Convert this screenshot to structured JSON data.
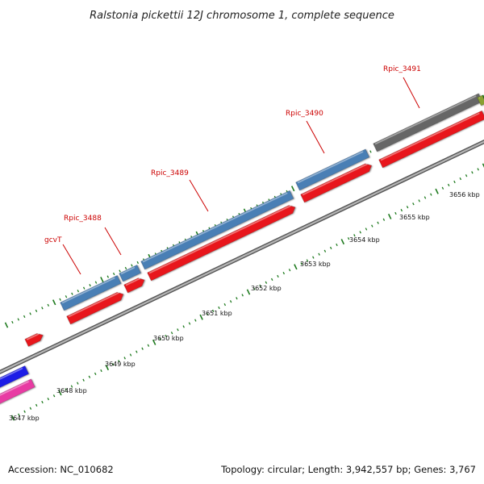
{
  "title": "Ralstonia pickettii 12J chromosome 1, complete sequence",
  "accession": "Accession: NC_010682",
  "summary": "Topology: circular; Length: 3,942,557 bp; Genes: 3,767",
  "colors": {
    "backbone": "#7d7d7d",
    "forward_gene": "#4a7fb5",
    "reverse_gene": "#e8191a",
    "pseudo_gene": "#666666",
    "olive_gene": "#8aa033",
    "blue_gene": "#1a1ae6",
    "pink_gene": "#e83aa3",
    "tick": "#1e7a1e",
    "gene_label": "#cc0000"
  },
  "scale_labels": [
    "3647 kbp",
    "3648 kbp",
    "3649 kbp",
    "3650 kbp",
    "3651 kbp",
    "3652 kbp",
    "3653 kbp",
    "3654 kbp",
    "3655 kbp",
    "3656 kbp"
  ],
  "gene_labels": [
    "gcvT",
    "Rpic_3488",
    "Rpic_3489",
    "Rpic_3490",
    "Rpic_3491"
  ]
}
